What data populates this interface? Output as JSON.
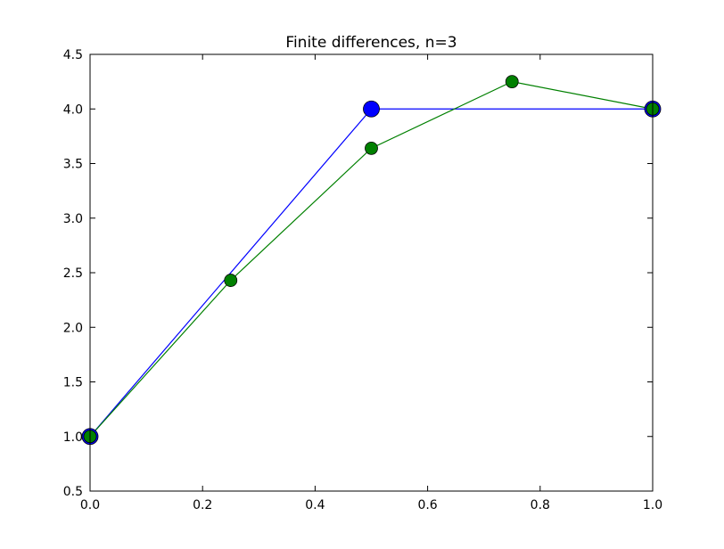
{
  "chart_data": {
    "type": "line",
    "title": "Finite differences, n=3",
    "xlabel": "",
    "ylabel": "",
    "xlim": [
      0.0,
      1.0
    ],
    "ylim": [
      0.5,
      4.5
    ],
    "grid": false,
    "x_ticks": [
      "0.0",
      "0.2",
      "0.4",
      "0.6",
      "0.8",
      "1.0"
    ],
    "y_ticks": [
      "0.5",
      "1.0",
      "1.5",
      "2.0",
      "2.5",
      "3.0",
      "3.5",
      "4.0",
      "4.5"
    ],
    "series": [
      {
        "color": "#0000ff",
        "marker": "large-circle",
        "x": [
          0.0,
          0.5,
          1.0
        ],
        "y": [
          1.0,
          4.0,
          4.0
        ]
      },
      {
        "color": "#008000",
        "marker": "circle",
        "x": [
          0.0,
          0.25,
          0.5,
          0.75,
          1.0
        ],
        "y": [
          1.0,
          2.43,
          3.64,
          4.25,
          4.0
        ]
      }
    ]
  }
}
